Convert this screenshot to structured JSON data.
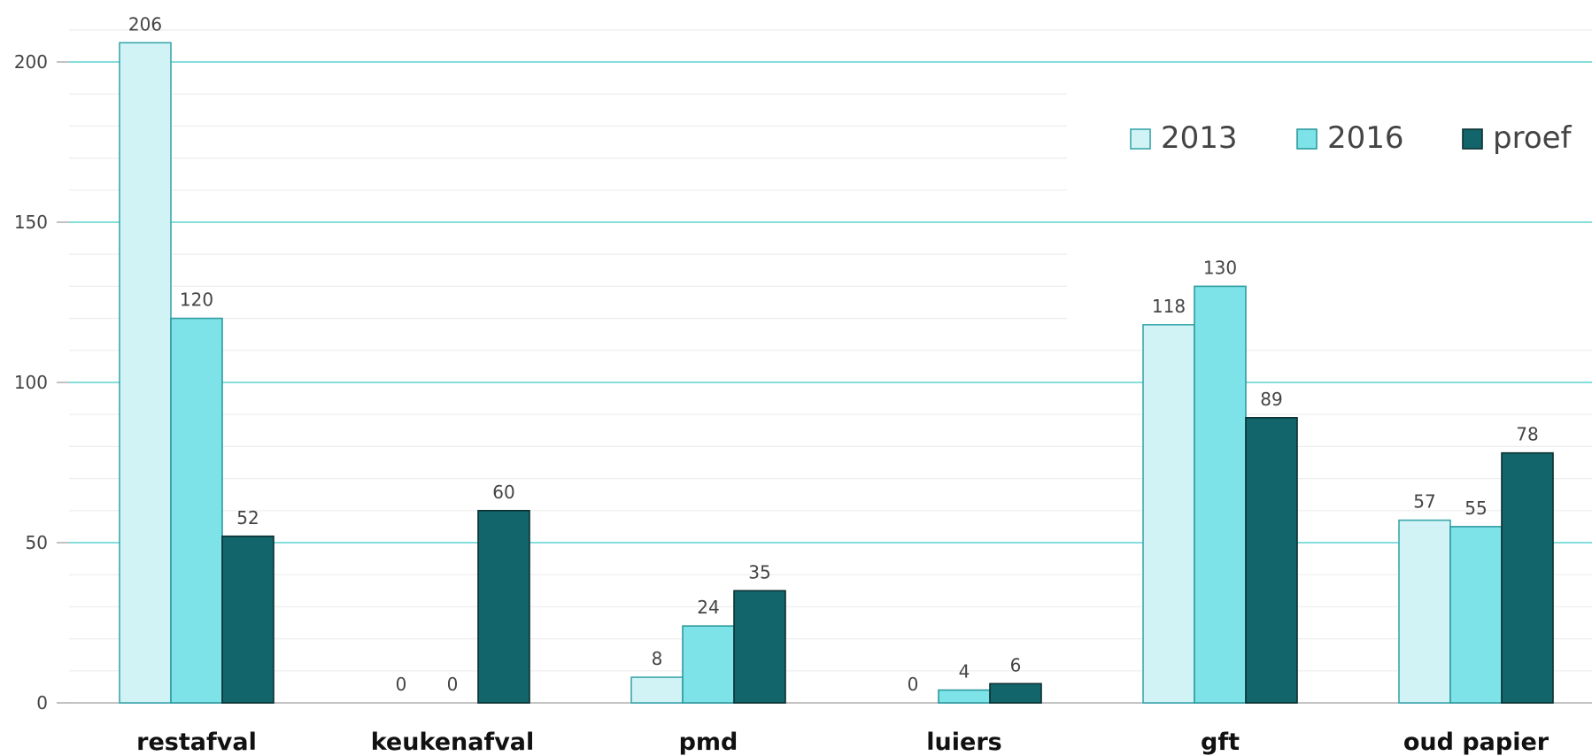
{
  "chart_data": {
    "type": "bar",
    "title": "",
    "xlabel": "",
    "ylabel": "",
    "categories": [
      "restafval",
      "keukenafval",
      "pmd",
      "luiers",
      "gft",
      "oud papier"
    ],
    "series": [
      {
        "name": "2013",
        "values": [
          206,
          0,
          8,
          0,
          118,
          57
        ],
        "color": "#d2f3f5",
        "stroke": "#3aa7ab"
      },
      {
        "name": "2016",
        "values": [
          120,
          0,
          24,
          4,
          130,
          55
        ],
        "color": "#7de3e8",
        "stroke": "#2f9aa0"
      },
      {
        "name": "proef",
        "values": [
          52,
          60,
          35,
          6,
          89,
          78
        ],
        "color": "#12666b",
        "stroke": "#0a2f31"
      }
    ],
    "yticks": [
      0,
      50,
      100,
      150,
      200
    ],
    "ytick_labels": [
      "0",
      "50",
      "100",
      "150",
      "200"
    ],
    "ylim": [
      0,
      210
    ],
    "legend_position": "top-right",
    "grid": true,
    "major_grid_color": "#5fd3d0",
    "minor_grid_color": "#eeeeee"
  }
}
